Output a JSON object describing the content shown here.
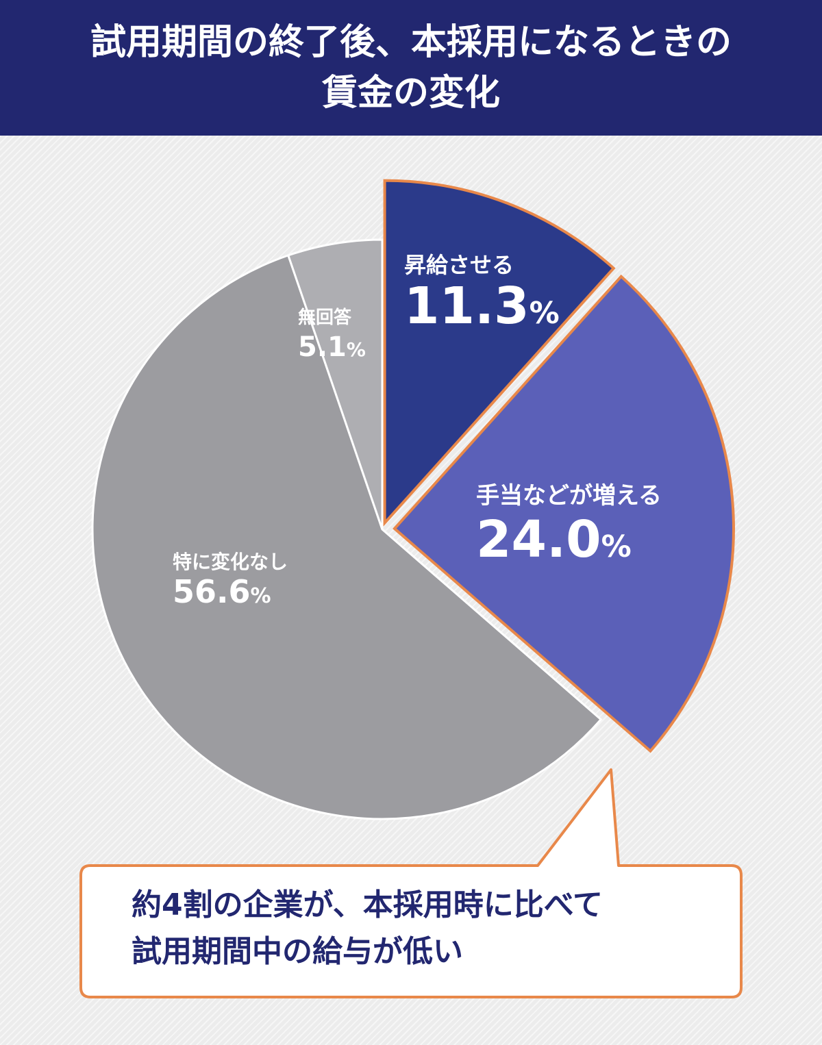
{
  "title_line1": "試用期間の終了後、本採用になるときの",
  "title_line2": "賃金の変化",
  "chart_data": {
    "type": "pie",
    "title": "試用期間の終了後、本採用になるときの賃金の変化",
    "unit": "%",
    "slices": [
      {
        "label": "昇給させる",
        "value": 11.3,
        "value_text": "11.3",
        "color": "#2b3a8a",
        "highlighted": true
      },
      {
        "label": "手当などが増える",
        "value": 24.0,
        "value_text": "24.0",
        "color": "#5b60b8",
        "highlighted": true
      },
      {
        "label": "特に変化なし",
        "value": 56.6,
        "value_text": "56.6",
        "color": "#9c9ca0",
        "highlighted": false
      },
      {
        "label": "無回答",
        "value": 5.1,
        "value_text": "5.1",
        "color": "#aeaeb2",
        "highlighted": false
      }
    ],
    "highlight_stroke": "#e8884a"
  },
  "callout": {
    "line1": "約4割の企業が、本採用時に比べて",
    "line2": "試用期間中の給与が低い"
  }
}
